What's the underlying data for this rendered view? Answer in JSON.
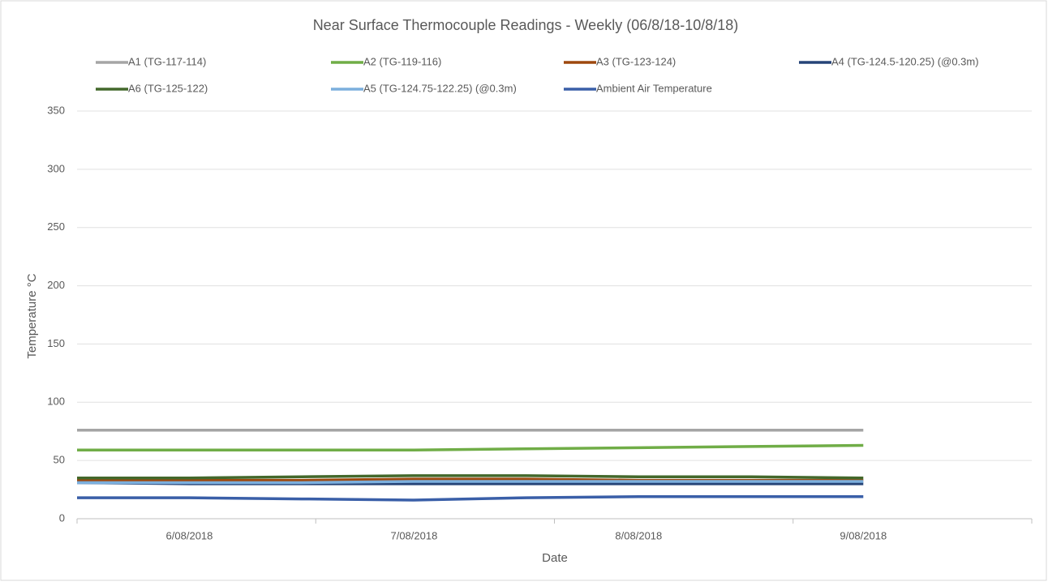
{
  "chart_data": {
    "type": "line",
    "title": "Near Surface Thermocouple Readings - Weekly (06/8/18-10/8/18)",
    "x_label": "Date",
    "y_label": "Temperature °C",
    "categories": [
      null,
      "6/08/2018",
      null,
      "7/08/2018",
      null,
      "8/08/2018",
      null,
      "9/08/2018"
    ],
    "ylim": [
      0,
      350
    ],
    "yticks": [
      0,
      50,
      100,
      150,
      200,
      250,
      300,
      350
    ],
    "grid": true,
    "series": [
      {
        "name": "A1 (TG-117-114)",
        "color": "#a5a5a5",
        "values": [
          76,
          76,
          76,
          76,
          76,
          76,
          76,
          76
        ]
      },
      {
        "name": "A2 (TG-119-116)",
        "color": "#70ad47",
        "values": [
          59,
          59,
          59,
          59,
          60,
          61,
          62,
          63
        ]
      },
      {
        "name": "A3 (TG-123-124)",
        "color": "#9e480e",
        "values": [
          33,
          33,
          33,
          34,
          34,
          33,
          33,
          33
        ]
      },
      {
        "name": "A4 (TG-124.5-120.25) (@0.3m)",
        "color": "#264478",
        "values": [
          31,
          30,
          30,
          30,
          30,
          30,
          30,
          30
        ]
      },
      {
        "name": "A6 (TG-125-122)",
        "color": "#43682b",
        "values": [
          35,
          35,
          36,
          37,
          37,
          36,
          36,
          35
        ]
      },
      {
        "name": "A5 (TG-124.75-122.25) (@0.3m)",
        "color": "#7cafdd",
        "values": [
          31,
          31,
          31,
          32,
          32,
          32,
          32,
          32
        ]
      },
      {
        "name": "Ambient Air Temperature",
        "color": "#3a5fa8",
        "values": [
          18,
          18,
          17,
          16,
          18,
          19,
          19,
          19
        ]
      }
    ]
  }
}
